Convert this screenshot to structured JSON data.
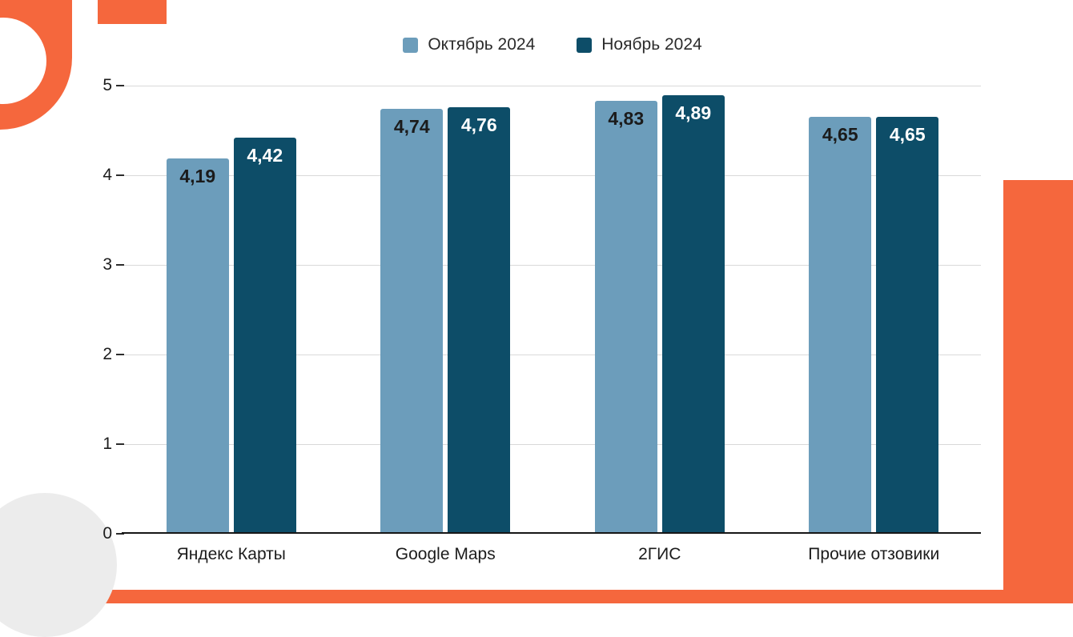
{
  "chart_data": {
    "type": "bar",
    "title": "",
    "xlabel": "",
    "ylabel": "",
    "categories": [
      "Яндекс Карты",
      "Google Maps",
      "2ГИС",
      "Прочие отзовики"
    ],
    "series": [
      {
        "name": "Октябрь 2024",
        "color": "#6C9DBB",
        "values": [
          4.19,
          4.74,
          4.83,
          4.65
        ],
        "labels": [
          "4,19",
          "4,74",
          "4,83",
          "4,65"
        ],
        "label_color": "#1b1b1b"
      },
      {
        "name": "Ноябрь 2024",
        "color": "#0D4D68",
        "values": [
          4.42,
          4.76,
          4.89,
          4.65
        ],
        "labels": [
          "4,42",
          "4,76",
          "4,89",
          "4,65"
        ],
        "label_color": "#ffffff"
      }
    ],
    "ylim": [
      0,
      5
    ],
    "yticks": [
      0,
      1,
      2,
      3,
      4,
      5
    ],
    "grid": true,
    "legend_position": "top"
  },
  "colors": {
    "accent_orange": "#F5673D",
    "grid_line": "#d9d9d9",
    "axis_line": "#161616",
    "text": "#1c1c1c",
    "decor_circle_gray": "#ececec"
  }
}
